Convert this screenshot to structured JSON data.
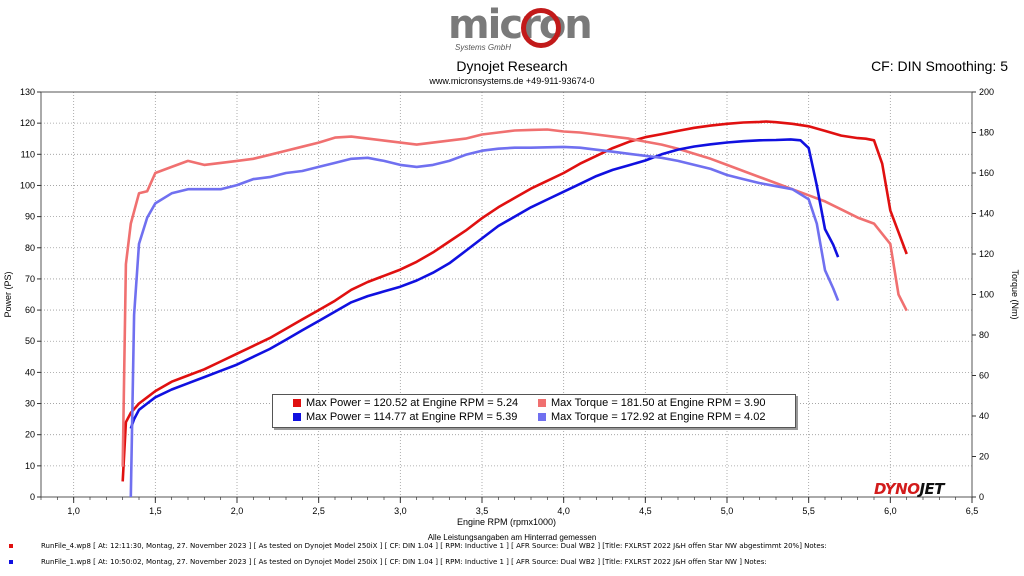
{
  "brand": {
    "logo_text": "micron",
    "logo_sub": "Systems GmbH",
    "title": "Dynojet Research",
    "subtitle": "www.micronsystems.de  +49-911-93674-0",
    "settings": "CF: DIN Smoothing: 5",
    "dynojet_red": "DYNO",
    "dynojet_black": "JET"
  },
  "footnote": "Alle Leistungsangaben am Hinterrad gemessen",
  "runs": [
    {
      "color": "#e01010",
      "text": "RunFile_4.wp8 [ At: 12:11:30, Montag, 27. November 2023 ] [ As tested on Dynojet Model 250iX ] [ CF: DIN 1.04 ] [ RPM: Inductive 1 ] [ AFR Source: Dual WB2 ] [Title: FXLRST 2022 J&H offen Star NW abgestimmt 20%]  Notes:"
    },
    {
      "color": "#1010e0",
      "text": "RunFile_1.wp8 [ At: 10:50:02, Montag, 27. November 2023 ] [ As tested on Dynojet Model 250iX ] [ CF: DIN 1.04 ] [ RPM: Inductive 1 ] [ AFR Source: Dual WB2 ] [Title: FXLRST 2022 J&H offen Star NW ]  Notes:"
    }
  ],
  "legend": [
    {
      "color": "#e01010",
      "text": "Max Power = 120.52 at Engine RPM = 5.24"
    },
    {
      "color": "#f07070",
      "text": "Max Torque = 181.50 at Engine RPM = 3.90"
    },
    {
      "color": "#1010e0",
      "text": "Max Power = 114.77 at Engine RPM = 5.39"
    },
    {
      "color": "#7070f0",
      "text": "Max Torque = 172.92 at Engine RPM = 4.02"
    }
  ],
  "chart_data": {
    "type": "line",
    "xlabel": "Engine RPM (rpmx1000)",
    "ylabel": "Power (PS)",
    "y2label": "Torque (Nm)",
    "xlim": [
      0.8,
      6.5
    ],
    "ylim": [
      0,
      130
    ],
    "y2lim": [
      0,
      200
    ],
    "xticks": [
      "1,0",
      "1,5",
      "2,0",
      "2,5",
      "3,0",
      "3,5",
      "4,0",
      "4,5",
      "5,0",
      "5,5",
      "6,0",
      "6,5"
    ],
    "xtick_values": [
      1.0,
      1.5,
      2.0,
      2.5,
      3.0,
      3.5,
      4.0,
      4.5,
      5.0,
      5.5,
      6.0,
      6.5
    ],
    "yticks": [
      0,
      10,
      20,
      30,
      40,
      50,
      60,
      70,
      80,
      90,
      100,
      110,
      120,
      130
    ],
    "y2ticks": [
      0,
      20,
      40,
      60,
      80,
      100,
      120,
      140,
      160,
      180,
      200
    ],
    "grid": true,
    "series": [
      {
        "axis": "left",
        "color": "#e01010",
        "x": [
          1.3,
          1.32,
          1.35,
          1.4,
          1.45,
          1.5,
          1.6,
          1.7,
          1.8,
          1.9,
          2.0,
          2.1,
          2.2,
          2.3,
          2.4,
          2.5,
          2.6,
          2.7,
          2.8,
          2.9,
          3.0,
          3.1,
          3.2,
          3.3,
          3.4,
          3.5,
          3.6,
          3.7,
          3.8,
          3.9,
          4.0,
          4.1,
          4.2,
          4.3,
          4.4,
          4.5,
          4.6,
          4.7,
          4.8,
          4.9,
          5.0,
          5.1,
          5.2,
          5.24,
          5.3,
          5.4,
          5.5,
          5.6,
          5.7,
          5.8,
          5.85,
          5.9,
          5.95,
          6.0,
          6.05,
          6.1
        ],
        "y": [
          5,
          24,
          27,
          30,
          32,
          34,
          37,
          39,
          41,
          43.5,
          46,
          48.5,
          51,
          54,
          57,
          60,
          63,
          66.5,
          69,
          71,
          73,
          75.5,
          78.5,
          82,
          85.5,
          89.5,
          93,
          96,
          99,
          101.5,
          104,
          107,
          109.5,
          112,
          114,
          115.5,
          116.5,
          117.5,
          118.5,
          119.2,
          119.8,
          120.2,
          120.4,
          120.52,
          120.3,
          119.8,
          119,
          117.5,
          116,
          115.2,
          115,
          114.5,
          107,
          92,
          85,
          78
        ]
      },
      {
        "axis": "right",
        "color": "#f07070",
        "x": [
          1.3,
          1.32,
          1.35,
          1.4,
          1.45,
          1.5,
          1.6,
          1.7,
          1.8,
          1.9,
          2.0,
          2.1,
          2.2,
          2.3,
          2.4,
          2.5,
          2.6,
          2.7,
          2.8,
          2.9,
          3.0,
          3.1,
          3.2,
          3.3,
          3.4,
          3.5,
          3.6,
          3.7,
          3.8,
          3.9,
          4.0,
          4.1,
          4.2,
          4.3,
          4.4,
          4.5,
          4.6,
          4.7,
          4.8,
          4.9,
          5.0,
          5.1,
          5.2,
          5.3,
          5.4,
          5.5,
          5.6,
          5.7,
          5.8,
          5.9,
          6.0,
          6.05,
          6.1
        ],
        "y": [
          15,
          115,
          135,
          150,
          151,
          160,
          163,
          166,
          164,
          165,
          166,
          167,
          169,
          171,
          173,
          175,
          177.5,
          178,
          177,
          176,
          175,
          174,
          175,
          176,
          177,
          179,
          180,
          181,
          181.3,
          181.5,
          180.5,
          180,
          179,
          178,
          177,
          175.5,
          174,
          172,
          169.5,
          167,
          164,
          161,
          158,
          155,
          152,
          149,
          146,
          142,
          138,
          135,
          125,
          100,
          92
        ]
      },
      {
        "axis": "left",
        "color": "#1010e0",
        "x": [
          1.35,
          1.37,
          1.4,
          1.45,
          1.5,
          1.6,
          1.7,
          1.8,
          1.9,
          2.0,
          2.1,
          2.2,
          2.3,
          2.4,
          2.5,
          2.6,
          2.7,
          2.8,
          2.9,
          3.0,
          3.1,
          3.2,
          3.3,
          3.4,
          3.5,
          3.6,
          3.7,
          3.8,
          3.9,
          4.0,
          4.1,
          4.2,
          4.3,
          4.4,
          4.5,
          4.6,
          4.7,
          4.8,
          4.9,
          5.0,
          5.1,
          5.2,
          5.3,
          5.39,
          5.45,
          5.5,
          5.55,
          5.6,
          5.65,
          5.68
        ],
        "y": [
          22,
          25,
          28,
          30,
          32,
          34.5,
          36.5,
          38.5,
          40.5,
          42.5,
          45,
          47.5,
          50.5,
          53.5,
          56.5,
          59.5,
          62.5,
          64.5,
          66,
          67.5,
          69.5,
          72,
          75,
          79,
          83,
          87,
          90,
          93,
          95.5,
          98,
          100.5,
          103,
          105,
          106.5,
          108,
          110,
          111.5,
          112.5,
          113.2,
          113.8,
          114.2,
          114.5,
          114.6,
          114.77,
          114.5,
          112,
          100,
          86,
          81,
          77
        ]
      },
      {
        "axis": "right",
        "color": "#7070f0",
        "x": [
          1.35,
          1.37,
          1.4,
          1.45,
          1.5,
          1.6,
          1.7,
          1.8,
          1.9,
          2.0,
          2.1,
          2.2,
          2.3,
          2.4,
          2.5,
          2.6,
          2.7,
          2.8,
          2.9,
          3.0,
          3.1,
          3.2,
          3.3,
          3.4,
          3.5,
          3.6,
          3.7,
          3.8,
          3.9,
          4.0,
          4.1,
          4.2,
          4.3,
          4.4,
          4.5,
          4.6,
          4.7,
          4.8,
          4.9,
          5.0,
          5.1,
          5.2,
          5.3,
          5.4,
          5.5,
          5.55,
          5.6,
          5.65,
          5.68
        ],
        "y": [
          0,
          90,
          125,
          138,
          145,
          150,
          152,
          152,
          152,
          154,
          157,
          158,
          160,
          161,
          163,
          165,
          167,
          167.5,
          166,
          164,
          163,
          164,
          166,
          169,
          171,
          172,
          172.5,
          172.5,
          172.7,
          172.9,
          172.5,
          171.5,
          170.5,
          169.5,
          168.5,
          167.5,
          166,
          164,
          162,
          159,
          157,
          155,
          153.5,
          152,
          147,
          135,
          112,
          103,
          97
        ]
      }
    ]
  }
}
